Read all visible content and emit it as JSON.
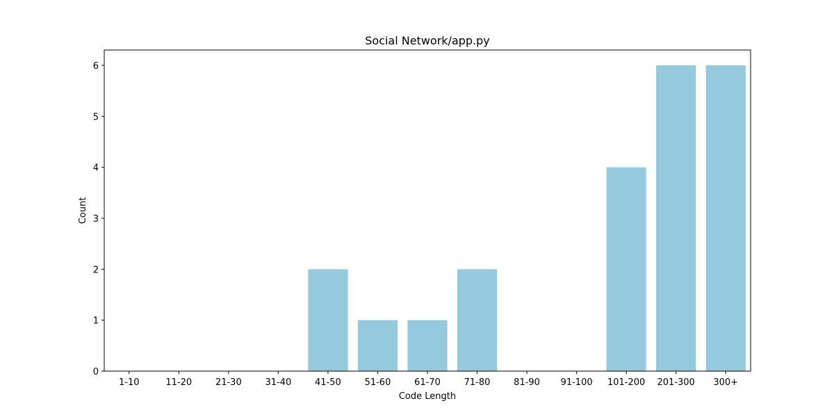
{
  "chart_data": {
    "type": "bar",
    "title": "Social Network/app.py",
    "xlabel": "Code Length",
    "ylabel": "Count",
    "categories": [
      "1-10",
      "11-20",
      "21-30",
      "31-40",
      "41-50",
      "51-60",
      "61-70",
      "71-80",
      "81-90",
      "91-100",
      "101-200",
      "201-300",
      "300+"
    ],
    "values": [
      0,
      0,
      0,
      0,
      2,
      1,
      1,
      2,
      0,
      0,
      4,
      6,
      6
    ],
    "ylim": [
      0,
      6.3
    ],
    "yticks": [
      0,
      1,
      2,
      3,
      4,
      5,
      6
    ],
    "grid": false,
    "legend": "none",
    "bar_color": "#95c9de",
    "axis_color": "#000000"
  }
}
